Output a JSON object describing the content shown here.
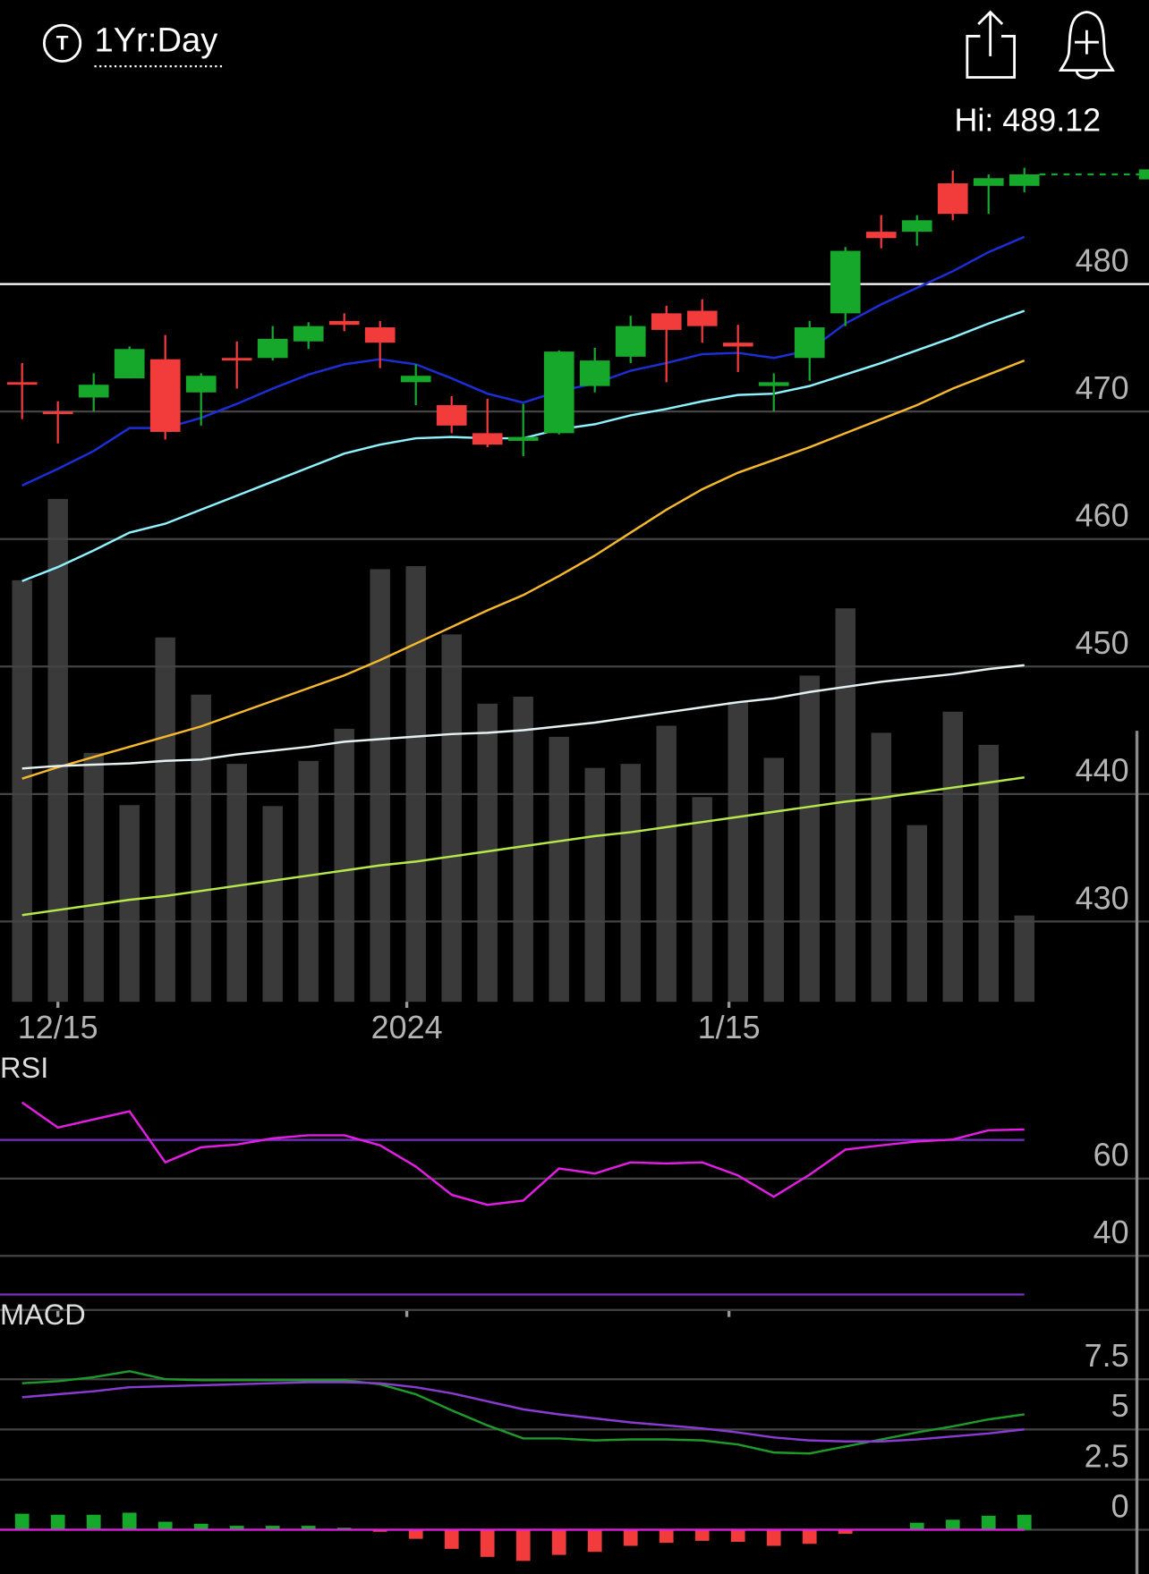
{
  "header": {
    "icon_letter": "T",
    "period": "1Yr:Day",
    "hi": "Hi: 489.12"
  },
  "chart_data": [
    {
      "type": "candlestick",
      "categories": [
        null,
        "12/15",
        null,
        null,
        null,
        null,
        null,
        null,
        null,
        null,
        null,
        "2024",
        null,
        null,
        null,
        null,
        null,
        null,
        null,
        null,
        "1/15",
        null,
        null,
        null,
        null,
        null,
        null,
        null,
        null
      ],
      "open": [
        472.3,
        470.0,
        471.1,
        472.6,
        474.1,
        471.5,
        474.2,
        474.2,
        475.5,
        477.1,
        476.6,
        472.3,
        470.5,
        468.3,
        467.7,
        468.3,
        472.0,
        474.3,
        477.7,
        477.9,
        475.4,
        472.0,
        474.2,
        477.7,
        484.1,
        484.1,
        487.9,
        487.7,
        487.7
      ],
      "high": [
        473.8,
        470.8,
        473.0,
        475.1,
        476.0,
        473.0,
        475.5,
        476.7,
        477.0,
        477.7,
        477.1,
        473.7,
        471.2,
        471.0,
        470.6,
        474.8,
        475.0,
        477.5,
        478.3,
        478.8,
        476.8,
        473.0,
        477.1,
        482.9,
        485.4,
        485.4,
        488.9,
        488.6,
        489.12
      ],
      "low": [
        469.4,
        467.5,
        470.0,
        472.6,
        467.8,
        468.9,
        471.8,
        474.0,
        474.9,
        476.3,
        473.4,
        470.5,
        468.3,
        467.2,
        466.5,
        468.2,
        471.5,
        473.8,
        472.3,
        475.4,
        473.1,
        470.0,
        472.4,
        476.7,
        482.8,
        483.0,
        485.0,
        485.5,
        487.2
      ],
      "close": [
        472.1,
        469.8,
        472.1,
        474.9,
        468.4,
        472.8,
        474.0,
        475.7,
        476.7,
        476.8,
        475.4,
        472.8,
        468.9,
        467.4,
        468.0,
        474.7,
        474.0,
        476.7,
        476.4,
        476.7,
        475.1,
        472.3,
        476.6,
        482.6,
        483.6,
        485.0,
        485.5,
        488.3,
        488.6
      ],
      "up_color": "#16a82a",
      "down_color": "#f23b3b",
      "volume": [
        84,
        100.2,
        49.6,
        39.2,
        72.6,
        61.2,
        47.4,
        39,
        48,
        54.4,
        86.2,
        86.8,
        73.2,
        59.4,
        60.8,
        52.8,
        46.6,
        47.4,
        55,
        40.8,
        59.8,
        48.6,
        65,
        78.4,
        53.6,
        35.2,
        57.8,
        51.2,
        17.2
      ],
      "volume_lim": [
        0,
        100
      ],
      "volume_color": "#3a3a3a",
      "series": [
        {
          "color": "#1c2fd6",
          "values": [
            464.2,
            465.5,
            466.9,
            468.7,
            468.7,
            469.5,
            470.6,
            471.8,
            472.9,
            473.7,
            474.1,
            473.7,
            472.6,
            471.4,
            470.7,
            471.6,
            472.2,
            473.2,
            473.8,
            474.5,
            474.6,
            474.2,
            474.8,
            476.9,
            478.4,
            479.7,
            481.0,
            482.5,
            483.7
          ]
        },
        {
          "color": "#8ff2ff",
          "values": [
            456.7,
            457.8,
            459.1,
            460.5,
            461.2,
            462.3,
            463.4,
            464.5,
            465.6,
            466.7,
            467.4,
            467.9,
            468.0,
            467.9,
            467.9,
            468.6,
            469.0,
            469.7,
            470.2,
            470.8,
            471.3,
            471.4,
            472.0,
            472.9,
            473.8,
            474.8,
            475.8,
            476.9,
            477.9
          ]
        },
        {
          "color": "#f6b92e",
          "values": [
            441.2,
            442.1,
            442.9,
            443.7,
            444.5,
            445.3,
            446.3,
            447.3,
            448.3,
            449.3,
            450.5,
            451.8,
            453.1,
            454.4,
            455.6,
            457.1,
            458.7,
            460.5,
            462.3,
            463.9,
            465.2,
            466.2,
            467.2,
            468.3,
            469.4,
            470.5,
            471.8,
            472.9,
            474.0
          ]
        },
        {
          "color": "#e6f2f2",
          "values": [
            442.0,
            442.2,
            442.3,
            442.4,
            442.6,
            442.7,
            443.1,
            443.4,
            443.7,
            444.1,
            444.3,
            444.5,
            444.7,
            444.8,
            445.0,
            445.3,
            445.6,
            446.0,
            446.4,
            446.8,
            447.2,
            447.5,
            448.0,
            448.4,
            448.8,
            449.1,
            449.4,
            449.8,
            450.1
          ]
        },
        {
          "color": "#b6e84a",
          "values": [
            430.5,
            430.9,
            431.3,
            431.7,
            432.0,
            432.4,
            432.8,
            433.2,
            433.6,
            434.0,
            434.4,
            434.7,
            435.1,
            435.5,
            435.9,
            436.3,
            436.7,
            437.0,
            437.4,
            437.8,
            438.2,
            438.6,
            439.0,
            439.4,
            439.7,
            440.1,
            440.5,
            440.9,
            441.3
          ]
        }
      ],
      "ylim": [
        423.7,
        494.4
      ],
      "yticks": [
        430,
        440,
        450,
        460,
        470,
        480
      ],
      "grid": true,
      "level_line": 480,
      "level_color": "#ffffff"
    },
    {
      "type": "line",
      "title": "RSI",
      "series": [
        {
          "color": "#e21ee2",
          "values": [
            79.7,
            73.2,
            75.3,
            77.4,
            64.2,
            68.1,
            68.8,
            70.4,
            71.2,
            71.2,
            68.6,
            63.1,
            55.8,
            53.2,
            54.3,
            62.6,
            61.3,
            64.2,
            63.9,
            64.2,
            60.8,
            55.3,
            61.0,
            67.5,
            68.6,
            69.6,
            70.1,
            72.5,
            72.7
          ]
        }
      ],
      "bands": [
        70,
        30
      ],
      "band_color": "#7a2fc4",
      "ylim": [
        26,
        86
      ],
      "yticks": [
        40,
        60
      ],
      "grid": true
    },
    {
      "type": "macd",
      "title": "MACD",
      "series": [
        {
          "color": "#1f9a2a",
          "values": [
            7.3,
            7.4,
            7.6,
            7.9,
            7.5,
            7.45,
            7.45,
            7.45,
            7.45,
            7.45,
            7.25,
            6.75,
            5.95,
            5.2,
            4.55,
            4.55,
            4.45,
            4.5,
            4.5,
            4.45,
            4.25,
            3.85,
            3.8,
            4.15,
            4.5,
            4.85,
            5.15,
            5.5,
            5.75
          ]
        },
        {
          "color": "#8a3cd2",
          "values": [
            6.6,
            6.75,
            6.9,
            7.1,
            7.15,
            7.2,
            7.25,
            7.3,
            7.35,
            7.35,
            7.3,
            7.1,
            6.8,
            6.4,
            6.0,
            5.75,
            5.55,
            5.35,
            5.2,
            5.05,
            4.85,
            4.6,
            4.45,
            4.4,
            4.4,
            4.5,
            4.65,
            4.8,
            5.0
          ]
        }
      ],
      "histogram": [
        0.8,
        0.75,
        0.75,
        0.85,
        0.4,
        0.3,
        0.2,
        0.2,
        0.2,
        0.1,
        -0.1,
        -0.45,
        -0.95,
        -1.35,
        -1.55,
        -1.25,
        -1.1,
        -0.8,
        -0.65,
        -0.55,
        -0.6,
        -0.8,
        -0.7,
        -0.2,
        0,
        0.35,
        0.5,
        0.7,
        0.75
      ],
      "up_color": "#16a82a",
      "down_color": "#f23b3b",
      "zero_color": "#e21ee2",
      "ylim": [
        -2.2,
        10.2
      ],
      "yticks": [
        0,
        2.5,
        5,
        7.5
      ],
      "grid": true
    }
  ]
}
